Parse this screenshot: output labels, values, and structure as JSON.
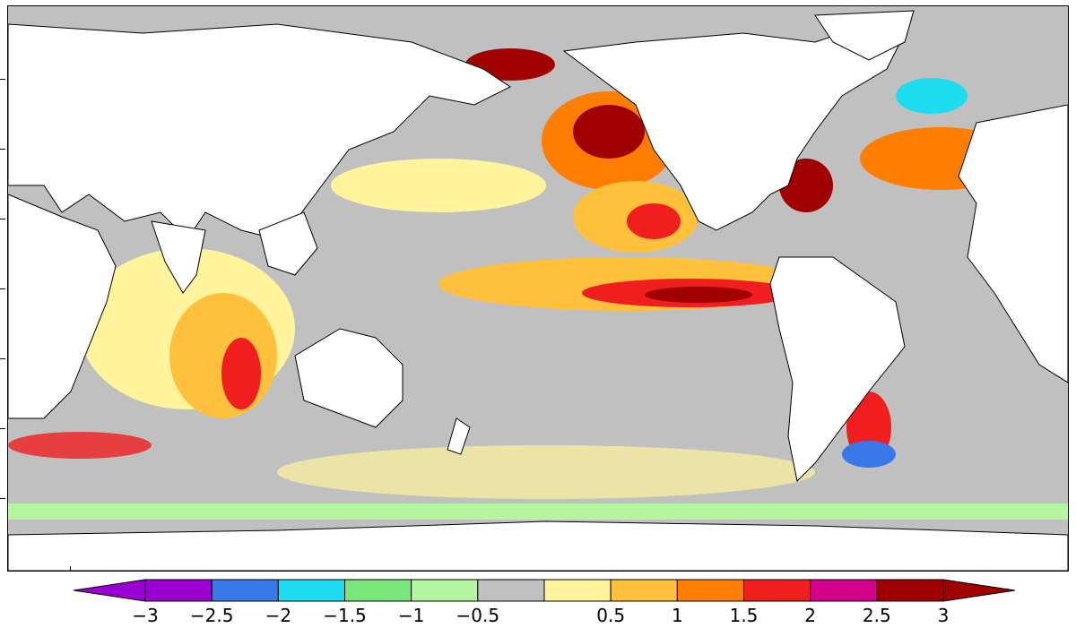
{
  "colorbar": {
    "labels": [
      "−3",
      "−2.5",
      "−2",
      "−1.5",
      "−1",
      "−0.5",
      "0.5",
      "1",
      "1.5",
      "2",
      "2.5",
      "3"
    ],
    "colors": [
      "#9b00d2",
      "#9b00d2",
      "#3878e8",
      "#1edcf0",
      "#78e678",
      "#b4f5a0",
      "#c0c0c0",
      "#fff39c",
      "#ffc03c",
      "#ff7d00",
      "#f01e1e",
      "#d2008c",
      "#a00000",
      "#a00000"
    ],
    "land_color": "#ffffff",
    "neutral_ocean_color": "#c0c0c0"
  }
}
